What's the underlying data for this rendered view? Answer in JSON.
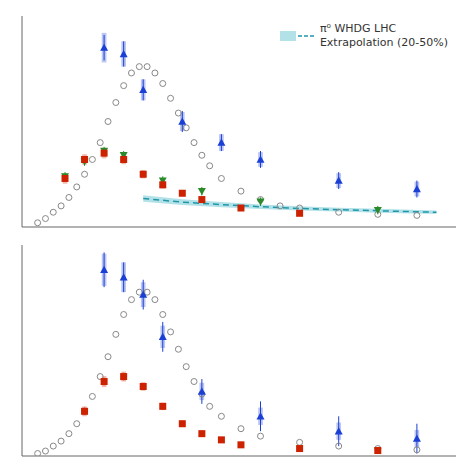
{
  "chart_data": [
    {
      "type": "scatter",
      "xlim": [
        -0.1,
        11.0
      ],
      "ylim": [
        0.0,
        1.0
      ],
      "xticks": [
        0,
        2,
        4,
        6,
        8,
        10
      ],
      "yticks": [
        0.0,
        0.2,
        0.4,
        0.6,
        0.8,
        1.0
      ],
      "tick_labels": false,
      "grid": false,
      "legend": "upper right",
      "series": [
        {
          "type": "scatter",
          "color": "#888888",
          "marker": "open_circle",
          "x": [
            0.3,
            0.5,
            0.7,
            0.9,
            1.1,
            1.3,
            1.5,
            1.7,
            1.9,
            2.1,
            2.3,
            2.5,
            2.7,
            2.9,
            3.1,
            3.3,
            3.5,
            3.7,
            3.9,
            4.1,
            4.3,
            4.5,
            4.7,
            5.0,
            5.5,
            6.0,
            6.5,
            7.0,
            8.0,
            9.0,
            10.0
          ],
          "values": [
            0.02,
            0.04,
            0.07,
            0.1,
            0.14,
            0.19,
            0.25,
            0.32,
            0.4,
            0.5,
            0.59,
            0.67,
            0.73,
            0.76,
            0.76,
            0.73,
            0.68,
            0.61,
            0.54,
            0.47,
            0.4,
            0.34,
            0.29,
            0.23,
            0.17,
            0.13,
            0.1,
            0.09,
            0.07,
            0.06,
            0.055
          ]
        },
        {
          "type": "scatter",
          "color": "#1a3fd4",
          "marker": "triangle_up",
          "x": [
            2.0,
            2.5,
            3.0,
            4.0,
            5.0,
            6.0,
            8.0,
            10.0
          ],
          "values": [
            0.85,
            0.82,
            0.65,
            0.5,
            0.4,
            0.32,
            0.22,
            0.18
          ],
          "errors": [
            0.06,
            0.06,
            0.05,
            0.05,
            0.04,
            0.04,
            0.04,
            0.04
          ],
          "sys_widths": [
            0.12,
            0.12,
            0.12,
            0.12,
            0.12,
            0.12,
            0.12,
            0.12
          ],
          "sys_heights": [
            0.14,
            0.12,
            0.1,
            0.09,
            0.08,
            0.07,
            0.07,
            0.07
          ]
        },
        {
          "type": "scatter",
          "color": "#2a8a2a",
          "marker": "triangle_down",
          "x": [
            1.0,
            1.5,
            2.0,
            2.5,
            3.5,
            4.5,
            6.0,
            9.0
          ],
          "values": [
            0.24,
            0.31,
            0.36,
            0.34,
            0.22,
            0.17,
            0.12,
            0.08
          ],
          "errors": [
            0.02,
            0.02,
            0.02,
            0.02,
            0.02,
            0.02,
            0.02,
            0.02
          ]
        },
        {
          "type": "scatter",
          "color": "#cc2200",
          "marker": "square",
          "x": [
            1.0,
            1.5,
            2.0,
            2.5,
            3.0,
            3.5,
            4.0,
            4.5,
            5.5,
            7.0
          ],
          "values": [
            0.23,
            0.32,
            0.35,
            0.32,
            0.25,
            0.2,
            0.16,
            0.13,
            0.09,
            0.065
          ],
          "errors": [
            0.015,
            0.015,
            0.015,
            0.015,
            0.012,
            0.012,
            0.012,
            0.012,
            0.012,
            0.012
          ],
          "sys_widths": [
            0.12,
            0.12,
            0.12,
            0.12,
            0.12,
            0.12,
            0.12,
            0.12,
            0.12,
            0.12
          ],
          "sys_heights": [
            0.05,
            0.05,
            0.05,
            0.045,
            0.04,
            0.035,
            0.03,
            0.025,
            0.02,
            0.018
          ]
        },
        {
          "type": "band",
          "color": "#7ecfd8",
          "x": [
            3.0,
            4.0,
            5.0,
            6.0,
            7.0,
            8.0,
            9.0,
            10.5
          ],
          "lower": [
            0.12,
            0.104,
            0.094,
            0.085,
            0.078,
            0.073,
            0.068,
            0.062
          ],
          "upper": [
            0.15,
            0.132,
            0.118,
            0.107,
            0.098,
            0.091,
            0.086,
            0.078
          ]
        },
        {
          "type": "line",
          "name": "π⁰ WHDG LHC\nExtrapolation (20-50%)",
          "color": "#2196a8",
          "line_style": "dashed",
          "x": [
            3.0,
            4.0,
            5.0,
            6.0,
            7.0,
            8.0,
            9.0,
            10.5
          ],
          "values": [
            0.135,
            0.118,
            0.106,
            0.096,
            0.088,
            0.082,
            0.077,
            0.07
          ]
        }
      ]
    },
    {
      "type": "scatter",
      "xlim": [
        -0.1,
        11.0
      ],
      "ylim": [
        0.0,
        0.85
      ],
      "xticks": [
        0,
        2,
        4,
        6,
        8,
        10
      ],
      "yticks": [
        0.0,
        0.2,
        0.4,
        0.6,
        0.8
      ],
      "tick_labels": false,
      "grid": false,
      "series": [
        {
          "type": "scatter",
          "color": "#888888",
          "marker": "open_circle",
          "x": [
            0.3,
            0.5,
            0.7,
            0.9,
            1.1,
            1.3,
            1.5,
            1.7,
            1.9,
            2.1,
            2.3,
            2.5,
            2.7,
            2.9,
            3.1,
            3.3,
            3.5,
            3.7,
            3.9,
            4.1,
            4.3,
            4.5,
            4.7,
            5.0,
            5.5,
            6.0,
            7.0,
            8.0,
            9.0,
            10.0
          ],
          "values": [
            0.01,
            0.02,
            0.04,
            0.06,
            0.09,
            0.13,
            0.18,
            0.24,
            0.32,
            0.4,
            0.49,
            0.57,
            0.63,
            0.66,
            0.66,
            0.63,
            0.57,
            0.5,
            0.43,
            0.36,
            0.3,
            0.25,
            0.2,
            0.16,
            0.11,
            0.08,
            0.055,
            0.04,
            0.03,
            0.025
          ]
        },
        {
          "type": "scatter",
          "color": "#1a3fd4",
          "marker": "triangle_up",
          "x": [
            2.0,
            2.5,
            3.0,
            3.5,
            4.5,
            6.0,
            8.0,
            10.0
          ],
          "values": [
            0.75,
            0.72,
            0.65,
            0.48,
            0.26,
            0.16,
            0.1,
            0.07
          ],
          "errors": [
            0.07,
            0.06,
            0.06,
            0.06,
            0.05,
            0.06,
            0.06,
            0.06
          ],
          "sys_widths": [
            0.12,
            0.12,
            0.12,
            0.12,
            0.12,
            0.12,
            0.12,
            0.12
          ],
          "sys_heights": [
            0.13,
            0.12,
            0.1,
            0.09,
            0.07,
            0.07,
            0.07,
            0.07
          ]
        },
        {
          "type": "scatter",
          "color": "#cc2200",
          "marker": "square",
          "x": [
            1.5,
            2.0,
            2.5,
            3.0,
            3.5,
            4.0,
            4.5,
            5.0,
            5.5,
            7.0,
            9.0
          ],
          "values": [
            0.18,
            0.3,
            0.32,
            0.28,
            0.2,
            0.13,
            0.09,
            0.065,
            0.045,
            0.03,
            0.022
          ],
          "errors": [
            0.015,
            0.015,
            0.015,
            0.012,
            0.012,
            0.012,
            0.012,
            0.012,
            0.012,
            0.012,
            0.012
          ],
          "sys_widths": [
            0.12,
            0.12,
            0.12,
            0.12,
            0.12,
            0.12,
            0.12,
            0.12,
            0.12,
            0.12,
            0.12
          ],
          "sys_heights": [
            0.04,
            0.045,
            0.04,
            0.035,
            0.03,
            0.025,
            0.02,
            0.018,
            0.015,
            0.012,
            0.01
          ]
        }
      ]
    }
  ]
}
